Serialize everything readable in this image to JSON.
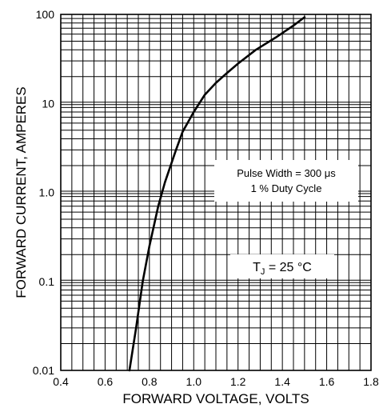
{
  "chart_data": {
    "type": "line",
    "xlabel": "FORWARD VOLTAGE, VOLTS",
    "ylabel": "FORWARD CURRENT, AMPERES",
    "x_scale": "linear",
    "y_scale": "log",
    "xlim": [
      0.4,
      1.8
    ],
    "ylim": [
      0.01,
      100
    ],
    "x_ticks": [
      "0.4",
      "0.6",
      "0.8",
      "1.0",
      "1.2",
      "1.4",
      "1.6",
      "1.8"
    ],
    "y_ticks": [
      "0.01",
      "0.1",
      "1.0",
      "10",
      "100"
    ],
    "grid": true,
    "annotations": {
      "pulse_width": "Pulse Width = 300 μs",
      "duty_cycle": "1 % Duty Cycle",
      "tj_prefix": "T",
      "tj_sub": "J",
      "tj_suffix": " = 25 °C"
    },
    "series": [
      {
        "x": [
          0.71,
          0.74,
          0.77,
          0.8,
          0.84,
          0.87,
          0.92,
          0.95,
          1.0,
          1.05,
          1.1,
          1.15,
          1.2,
          1.28,
          1.37,
          1.45,
          1.5
        ],
        "y": [
          0.01,
          0.03,
          0.1,
          0.25,
          0.7,
          1.3,
          3.0,
          4.8,
          8.0,
          12.5,
          17.0,
          22.0,
          28.0,
          40.0,
          55.0,
          75.0,
          93.0
        ]
      }
    ]
  }
}
